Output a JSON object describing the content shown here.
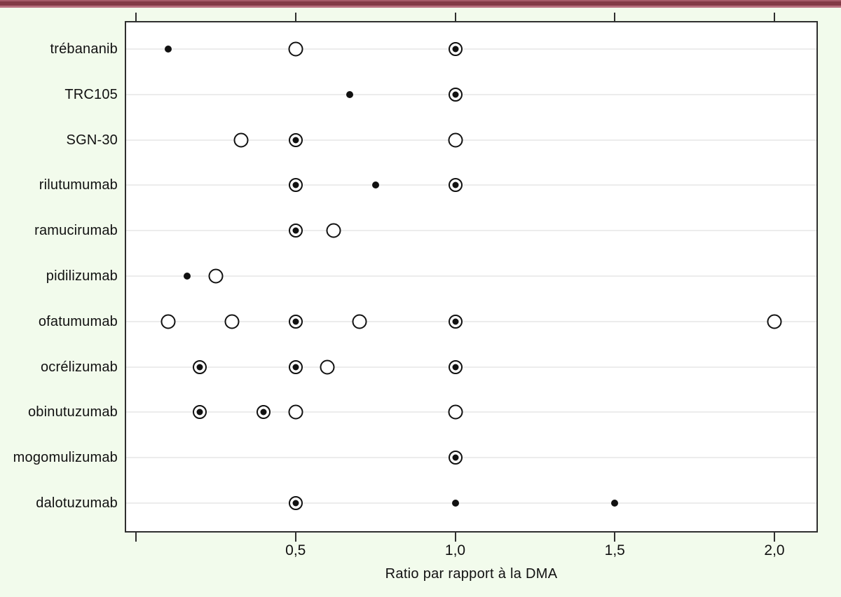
{
  "colors": {
    "background": "#f2fbec",
    "top_bar": "#823a46",
    "frame": "#2f2f2f",
    "gridline": "#ececec",
    "text": "#111111",
    "marker": "#111111"
  },
  "chart_data": {
    "type": "scatter",
    "title": "",
    "xlabel": "Ratio par rapport à la DMA",
    "ylabel": "",
    "xlim": [
      0,
      2.15
    ],
    "grid": "horizontal-only",
    "legend_position": "none",
    "x_ticks": [
      {
        "value": 0.0,
        "label": ""
      },
      {
        "value": 0.5,
        "label": "0,5"
      },
      {
        "value": 1.0,
        "label": "1,0"
      },
      {
        "value": 1.5,
        "label": "1,5"
      },
      {
        "value": 2.0,
        "label": "2,0"
      }
    ],
    "marker_glyphs": {
      "dot": "small-filled-circle-icon",
      "open": "large-open-circle-icon",
      "circledot": "open-circle-with-filled-center-icon"
    },
    "categories": [
      "trébananib",
      "TRC105",
      "SGN-30",
      "rilutumumab",
      "ramucirumab",
      "pidilizumab",
      "ofatumumab",
      "ocrélizumab",
      "obinutuzumab",
      "mogomulizumab",
      "dalotuzumab"
    ],
    "rows": [
      {
        "category": "trébananib",
        "points": [
          {
            "x": 0.1,
            "marker": "dot"
          },
          {
            "x": 0.5,
            "marker": "open"
          },
          {
            "x": 1.0,
            "marker": "circledot"
          }
        ]
      },
      {
        "category": "TRC105",
        "points": [
          {
            "x": 0.67,
            "marker": "dot"
          },
          {
            "x": 1.0,
            "marker": "circledot"
          }
        ]
      },
      {
        "category": "SGN-30",
        "points": [
          {
            "x": 0.33,
            "marker": "open"
          },
          {
            "x": 0.5,
            "marker": "circledot"
          },
          {
            "x": 1.0,
            "marker": "open"
          }
        ]
      },
      {
        "category": "rilutumumab",
        "points": [
          {
            "x": 0.5,
            "marker": "circledot"
          },
          {
            "x": 0.75,
            "marker": "dot"
          },
          {
            "x": 1.0,
            "marker": "circledot"
          }
        ]
      },
      {
        "category": "ramucirumab",
        "points": [
          {
            "x": 0.5,
            "marker": "circledot"
          },
          {
            "x": 0.62,
            "marker": "open"
          }
        ]
      },
      {
        "category": "pidilizumab",
        "points": [
          {
            "x": 0.16,
            "marker": "dot"
          },
          {
            "x": 0.25,
            "marker": "open"
          }
        ]
      },
      {
        "category": "ofatumumab",
        "points": [
          {
            "x": 0.1,
            "marker": "open"
          },
          {
            "x": 0.3,
            "marker": "open"
          },
          {
            "x": 0.5,
            "marker": "circledot"
          },
          {
            "x": 0.7,
            "marker": "open"
          },
          {
            "x": 1.0,
            "marker": "circledot"
          },
          {
            "x": 2.0,
            "marker": "open"
          }
        ]
      },
      {
        "category": "ocrélizumab",
        "points": [
          {
            "x": 0.2,
            "marker": "circledot"
          },
          {
            "x": 0.5,
            "marker": "circledot"
          },
          {
            "x": 0.6,
            "marker": "open"
          },
          {
            "x": 1.0,
            "marker": "circledot"
          }
        ]
      },
      {
        "category": "obinutuzumab",
        "points": [
          {
            "x": 0.2,
            "marker": "circledot"
          },
          {
            "x": 0.4,
            "marker": "circledot"
          },
          {
            "x": 0.5,
            "marker": "open"
          },
          {
            "x": 1.0,
            "marker": "open"
          }
        ]
      },
      {
        "category": "mogomulizumab",
        "points": [
          {
            "x": 1.0,
            "marker": "circledot"
          }
        ]
      },
      {
        "category": "dalotuzumab",
        "points": [
          {
            "x": 0.5,
            "marker": "circledot"
          },
          {
            "x": 1.0,
            "marker": "dot"
          },
          {
            "x": 1.5,
            "marker": "dot"
          }
        ]
      }
    ]
  }
}
